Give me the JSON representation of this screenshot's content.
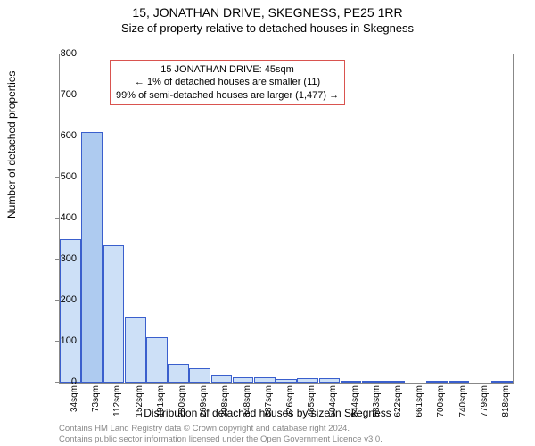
{
  "title": "15, JONATHAN DRIVE, SKEGNESS, PE25 1RR",
  "subtitle": "Size of property relative to detached houses in Skegness",
  "ylabel": "Number of detached properties",
  "xlabel": "Distribution of detached houses by size in Skegness",
  "chart": {
    "type": "histogram",
    "ylim": [
      0,
      800
    ],
    "ytick_step": 100,
    "background": "#ffffff",
    "bar_fill": "#cde0f7",
    "bar_stroke": "#3a5fcd",
    "highlight_fill": "#aecbf0",
    "border_color": "#888888",
    "xticks": [
      "34sqm",
      "73sqm",
      "112sqm",
      "152sqm",
      "191sqm",
      "230sqm",
      "269sqm",
      "308sqm",
      "348sqm",
      "387sqm",
      "426sqm",
      "465sqm",
      "504sqm",
      "544sqm",
      "583sqm",
      "622sqm",
      "661sqm",
      "700sqm",
      "740sqm",
      "779sqm",
      "818sqm"
    ],
    "bars": [
      {
        "v": 350,
        "hl": false
      },
      {
        "v": 610,
        "hl": true
      },
      {
        "v": 335,
        "hl": false
      },
      {
        "v": 160,
        "hl": false
      },
      {
        "v": 110,
        "hl": false
      },
      {
        "v": 45,
        "hl": false
      },
      {
        "v": 35,
        "hl": false
      },
      {
        "v": 20,
        "hl": false
      },
      {
        "v": 14,
        "hl": false
      },
      {
        "v": 12,
        "hl": false
      },
      {
        "v": 8,
        "hl": false
      },
      {
        "v": 10,
        "hl": false
      },
      {
        "v": 10,
        "hl": false
      },
      {
        "v": 4,
        "hl": false
      },
      {
        "v": 2,
        "hl": false
      },
      {
        "v": 2,
        "hl": false
      },
      {
        "v": 0,
        "hl": false
      },
      {
        "v": 2,
        "hl": false
      },
      {
        "v": 3,
        "hl": false
      },
      {
        "v": 0,
        "hl": false
      },
      {
        "v": 3,
        "hl": false
      }
    ]
  },
  "annotation": {
    "line1": "15 JONATHAN DRIVE: 45sqm",
    "line2": "← 1% of detached houses are smaller (11)",
    "line3": "99% of semi-detached houses are larger (1,477) →",
    "border_color": "#d9534f"
  },
  "footer": {
    "line1": "Contains HM Land Registry data © Crown copyright and database right 2024.",
    "line2": "Contains public sector information licensed under the Open Government Licence v3.0."
  }
}
